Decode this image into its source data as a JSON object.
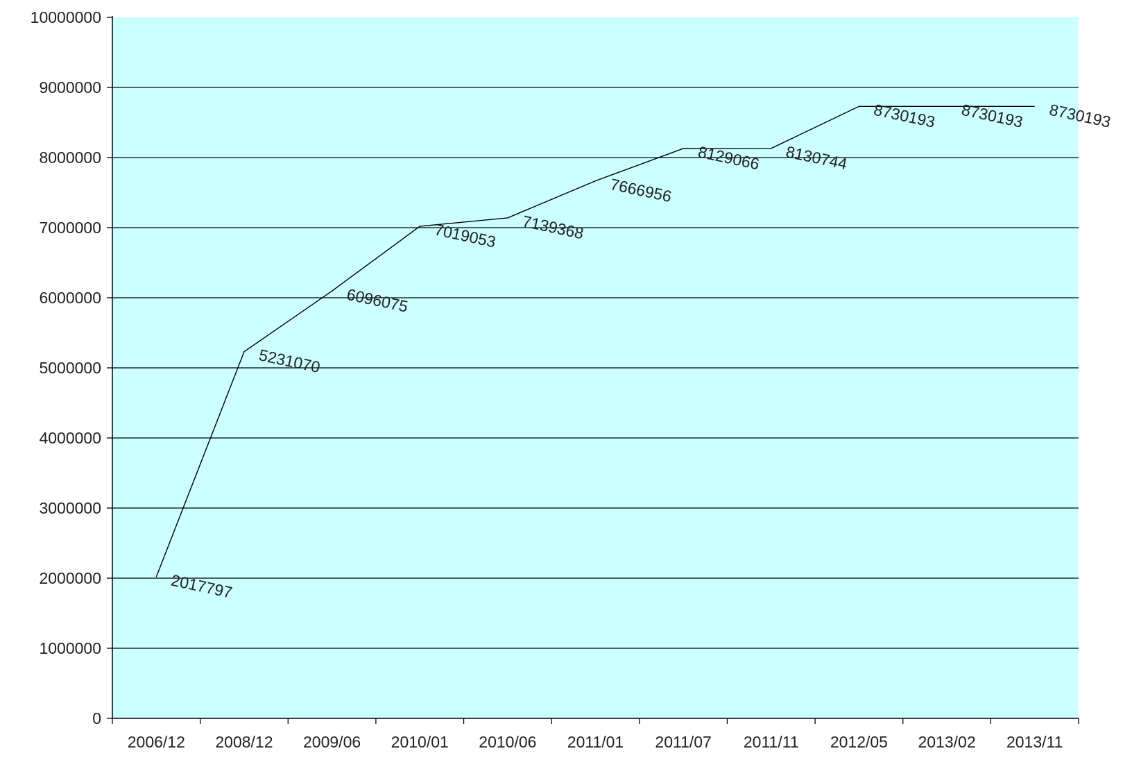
{
  "chart_data": {
    "type": "line",
    "categories": [
      "2006/12",
      "2008/12",
      "2009/06",
      "2010/01",
      "2010/06",
      "2011/01",
      "2011/07",
      "2011/11",
      "2012/05",
      "2013/02",
      "2013/11"
    ],
    "values": [
      2017797,
      5231070,
      6096075,
      7019053,
      7139368,
      7666956,
      8129066,
      8130744,
      8730193,
      8730193,
      8730193
    ],
    "data_labels": [
      "2017797",
      "5231070",
      "6096075",
      "7019053",
      "7139368",
      "7666956",
      "8129066",
      "8130744",
      "8730193",
      "8730193",
      "8730193"
    ],
    "yticks": [
      0,
      1000000,
      2000000,
      3000000,
      4000000,
      5000000,
      6000000,
      7000000,
      8000000,
      9000000,
      10000000
    ],
    "ytick_labels": [
      "0",
      "1000000",
      "2000000",
      "3000000",
      "4000000",
      "5000000",
      "6000000",
      "7000000",
      "8000000",
      "9000000",
      "10000000"
    ],
    "ylim": [
      0,
      10000000
    ],
    "title": "",
    "xlabel": "",
    "ylabel": "",
    "grid": "horizontal",
    "legend": "none",
    "colors": {
      "plot_background": "#ccffff",
      "line": "#000000",
      "gridline": "#000000"
    }
  }
}
